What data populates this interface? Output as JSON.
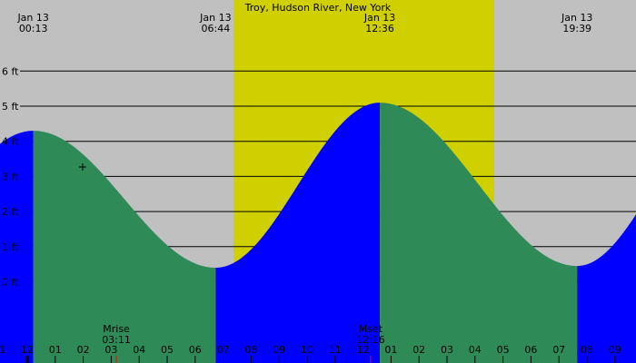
{
  "chart_data": {
    "type": "area",
    "title": "Troy, Hudson River, New York",
    "xlabel": "",
    "ylabel": "ft",
    "ylim": [
      -1.5,
      7.5
    ],
    "y_ticks": [
      "0 ft",
      "1 ft",
      "2 ft",
      "3 ft",
      "4 ft",
      "5 ft",
      "6 ft"
    ],
    "x_ticks": [
      "11",
      "12",
      "01",
      "02",
      "03",
      "04",
      "05",
      "06",
      "07",
      "08",
      "09",
      "10",
      "11",
      "12",
      "01",
      "02",
      "03",
      "04",
      "05",
      "06",
      "07",
      "08",
      "09"
    ],
    "tide_events": [
      {
        "date": "Jan 13",
        "time": "00:13",
        "type": "high",
        "height_ft": 4.3
      },
      {
        "date": "Jan 13",
        "time": "06:44",
        "type": "low",
        "height_ft": 0.4
      },
      {
        "date": "Jan 13",
        "time": "12:36",
        "type": "high",
        "height_ft": 5.1
      },
      {
        "date": "Jan 13",
        "time": "19:39",
        "type": "low",
        "height_ft": 0.45
      }
    ],
    "moon_events": [
      {
        "label": "Mrise",
        "time": "03:11"
      },
      {
        "label": "Mset",
        "time": "12:16"
      }
    ],
    "current_marker": {
      "time": "01:45",
      "height_ft": 3.3
    },
    "daylight": {
      "start": "07:13",
      "end": "16:45"
    }
  },
  "colors": {
    "night_bg": "#c0c0c0",
    "day_bg": "#d0d000",
    "rising": "#0000ff",
    "falling": "#2e8b57",
    "grid": "#000000",
    "moon_tick": "#ff0000"
  }
}
